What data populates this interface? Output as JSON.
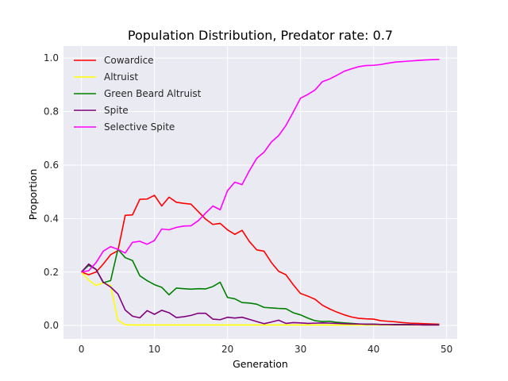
{
  "chart_data": {
    "type": "line",
    "title": "Population Distribution, Predator rate: 0.7",
    "xlabel": "Generation",
    "ylabel": "Proportion",
    "xlim": [
      -2.45,
      51.45
    ],
    "ylim": [
      -0.05,
      1.045
    ],
    "xticks": [
      "0",
      "10",
      "20",
      "30",
      "40",
      "50"
    ],
    "yticks": [
      "0.0",
      "0.2",
      "0.4",
      "0.6",
      "0.8",
      "1.0"
    ],
    "grid": true,
    "legend_position": "top-left",
    "x": [
      0,
      1,
      2,
      3,
      4,
      5,
      6,
      7,
      8,
      9,
      10,
      11,
      12,
      13,
      14,
      15,
      16,
      17,
      18,
      19,
      20,
      21,
      22,
      23,
      24,
      25,
      26,
      27,
      28,
      29,
      30,
      31,
      32,
      33,
      34,
      35,
      36,
      37,
      38,
      39,
      40,
      41,
      42,
      43,
      44,
      45,
      46,
      47,
      48,
      49
    ],
    "series": [
      {
        "name": "Cowardice",
        "color": "#ff0000",
        "values": [
          0.2,
          0.19,
          0.2,
          0.23,
          0.265,
          0.28,
          0.412,
          0.414,
          0.472,
          0.473,
          0.487,
          0.447,
          0.48,
          0.461,
          0.457,
          0.454,
          0.426,
          0.398,
          0.378,
          0.382,
          0.358,
          0.341,
          0.356,
          0.314,
          0.283,
          0.278,
          0.236,
          0.203,
          0.19,
          0.153,
          0.12,
          0.11,
          0.098,
          0.076,
          0.062,
          0.05,
          0.04,
          0.032,
          0.027,
          0.025,
          0.024,
          0.018,
          0.016,
          0.014,
          0.011,
          0.009,
          0.008,
          0.007,
          0.006,
          0.005
        ]
      },
      {
        "name": "Altruist",
        "color": "#ffff00",
        "values": [
          0.2,
          0.17,
          0.15,
          0.16,
          0.15,
          0.02,
          0.003,
          0.002,
          0.002,
          0.002,
          0.002,
          0.002,
          0.002,
          0.002,
          0.002,
          0.002,
          0.002,
          0.002,
          0.002,
          0.002,
          0.002,
          0.002,
          0.002,
          0.002,
          0.002,
          0.002,
          0.002,
          0.002,
          0.002,
          0.002,
          0.002,
          0.002,
          0.002,
          0.002,
          0.002,
          0.002,
          0.002,
          0.002,
          0.002,
          0.002,
          0.002,
          0.002,
          0.002,
          0.002,
          0.002,
          0.002,
          0.002,
          0.002,
          0.002,
          0.002
        ]
      },
      {
        "name": "Green Beard Altruist",
        "color": "#008000",
        "values": [
          0.2,
          0.225,
          0.21,
          0.16,
          0.168,
          0.285,
          0.254,
          0.243,
          0.186,
          0.168,
          0.153,
          0.143,
          0.115,
          0.14,
          0.138,
          0.136,
          0.138,
          0.137,
          0.146,
          0.162,
          0.105,
          0.1,
          0.086,
          0.084,
          0.08,
          0.068,
          0.066,
          0.064,
          0.063,
          0.048,
          0.04,
          0.028,
          0.018,
          0.015,
          0.016,
          0.012,
          0.01,
          0.008,
          0.006,
          0.005,
          0.005,
          0.004,
          0.004,
          0.004,
          0.004,
          0.004,
          0.003,
          0.003,
          0.003,
          0.003
        ]
      },
      {
        "name": "Spite",
        "color": "#800080",
        "values": [
          0.2,
          0.23,
          0.21,
          0.162,
          0.144,
          0.118,
          0.058,
          0.035,
          0.029,
          0.056,
          0.042,
          0.057,
          0.048,
          0.03,
          0.033,
          0.038,
          0.046,
          0.046,
          0.024,
          0.022,
          0.031,
          0.028,
          0.031,
          0.023,
          0.015,
          0.007,
          0.013,
          0.02,
          0.008,
          0.011,
          0.01,
          0.008,
          0.009,
          0.01,
          0.009,
          0.008,
          0.007,
          0.006,
          0.006,
          0.005,
          0.005,
          0.004,
          0.004,
          0.003,
          0.003,
          0.003,
          0.003,
          0.002,
          0.002,
          0.002
        ]
      },
      {
        "name": "Selective Spite",
        "color": "#ff00ff",
        "values": [
          0.2,
          0.205,
          0.235,
          0.278,
          0.295,
          0.285,
          0.271,
          0.311,
          0.315,
          0.304,
          0.318,
          0.361,
          0.358,
          0.367,
          0.372,
          0.373,
          0.392,
          0.42,
          0.447,
          0.433,
          0.504,
          0.536,
          0.527,
          0.579,
          0.625,
          0.648,
          0.686,
          0.71,
          0.748,
          0.798,
          0.85,
          0.864,
          0.881,
          0.912,
          0.922,
          0.936,
          0.951,
          0.96,
          0.968,
          0.972,
          0.973,
          0.976,
          0.981,
          0.985,
          0.987,
          0.989,
          0.991,
          0.993,
          0.994,
          0.995
        ]
      }
    ]
  }
}
